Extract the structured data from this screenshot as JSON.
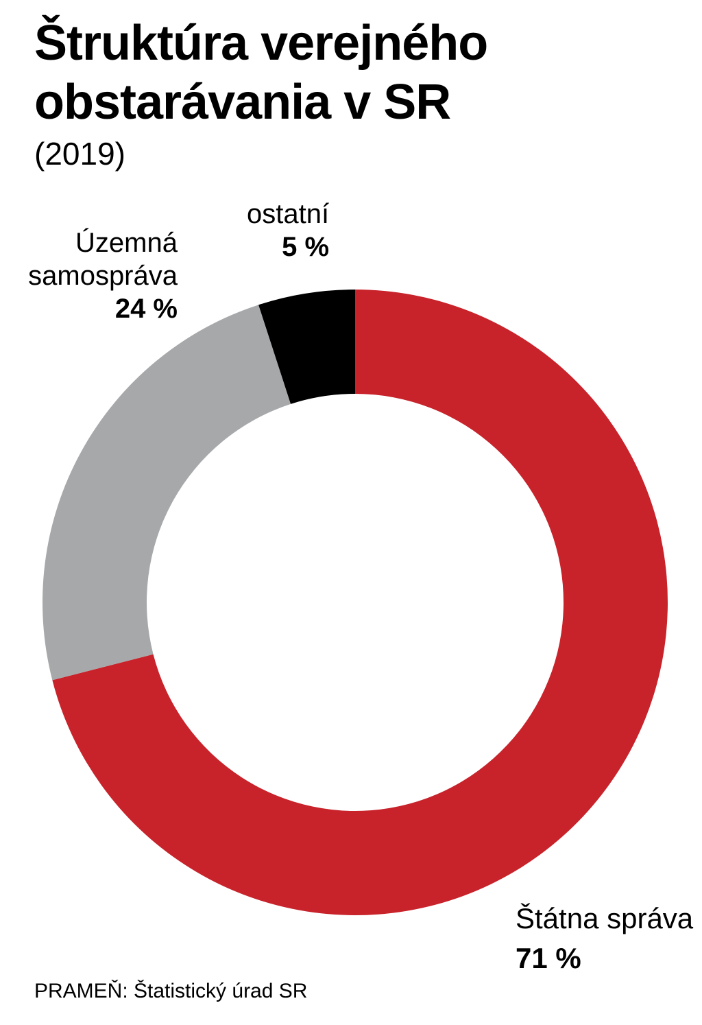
{
  "title_line1": "Štruktúra verejného",
  "title_line2": "obstarávania v SR",
  "subtitle": "(2019)",
  "source": "PRAMEŇ: Štatistický úrad SR",
  "chart_data": {
    "type": "pie",
    "variant": "donut",
    "title": "Štruktúra verejného obstarávania v SR",
    "subtitle": "(2019)",
    "unit": "%",
    "slices": [
      {
        "label": "Štátna správa",
        "value": 71,
        "value_label": "71 %",
        "color": "#c8222a"
      },
      {
        "label": "Územná samospráva",
        "label_lines": [
          "Územná",
          "samospráva"
        ],
        "value": 24,
        "value_label": "24 %",
        "color": "#a7a8aa"
      },
      {
        "label": "ostatní",
        "value": 5,
        "value_label": "5 %",
        "color": "#000000"
      }
    ]
  }
}
